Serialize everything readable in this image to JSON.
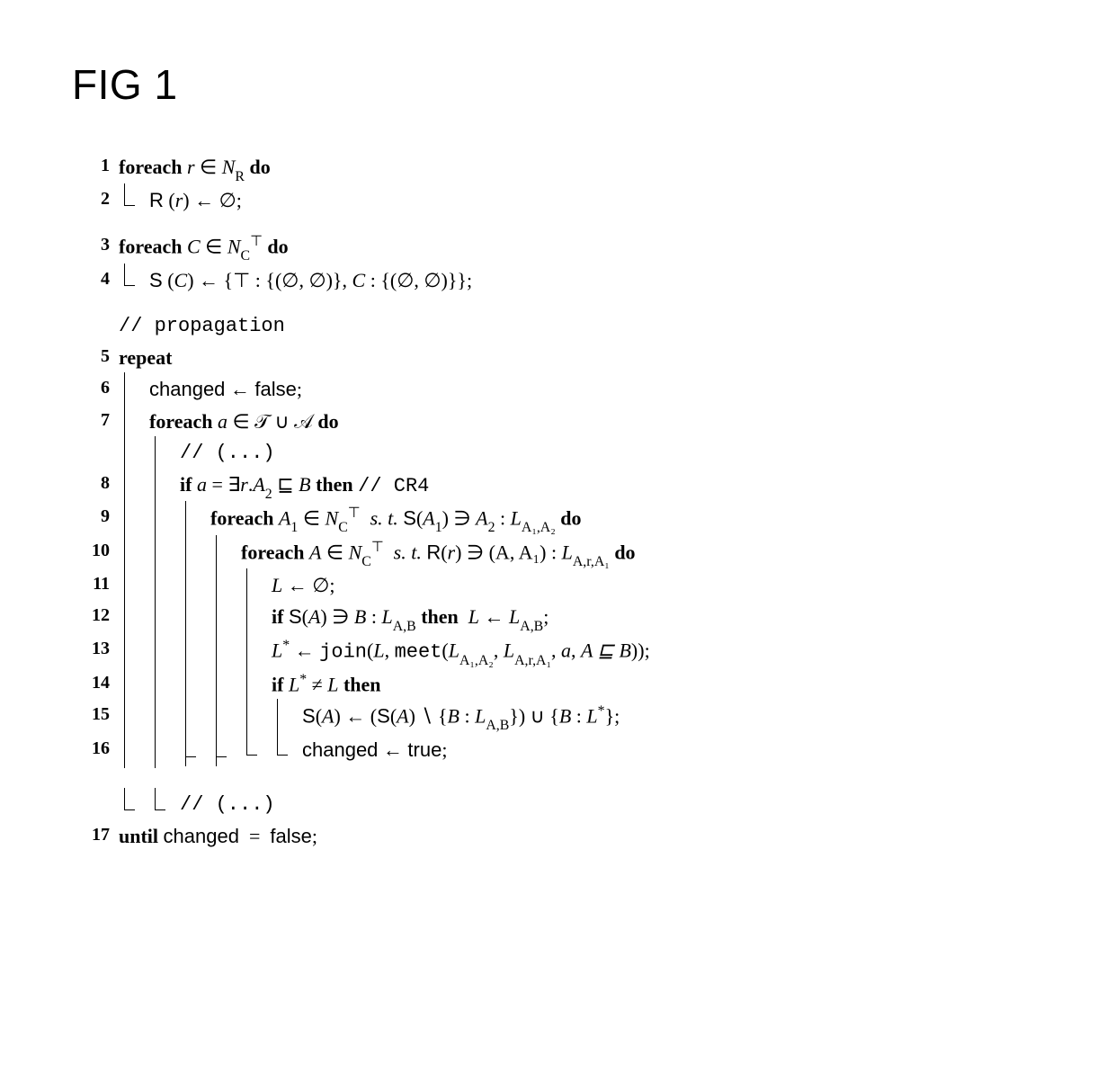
{
  "figure": {
    "title": "FIG 1",
    "title_fontsize": 46,
    "font_body_size": 22,
    "background_color": "#ffffff",
    "text_color": "#000000",
    "rule_color": "#000000",
    "font_mono": "Courier New",
    "font_serif": "Computer Modern / Times",
    "font_sans": "Helvetica/Arial"
  },
  "glyphs": {
    "in": "∈",
    "ni": "∋",
    "assign": "←",
    "empty": "∅",
    "top": "⊤",
    "sqsubset": "⊑",
    "exists": "∃",
    "neq": "≠",
    "setminus": "∖",
    "cup": "∪"
  },
  "kw": {
    "foreach": "foreach",
    "do": "do",
    "repeat": "repeat",
    "until": "until",
    "if": "if",
    "then": "then"
  },
  "tt": {
    "comment_prop": "// propagation",
    "ellipsis": "// (...)",
    "cr4": "// CR4",
    "join": "join",
    "meet": "meet"
  },
  "sf": {
    "R": "R",
    "S": "S",
    "changed": "changed",
    "false": "false",
    "true": "true"
  },
  "lines": {
    "l1": {
      "n": "1"
    },
    "l2": {
      "n": "2"
    },
    "l3": {
      "n": "3"
    },
    "l4": {
      "n": "4"
    },
    "l5": {
      "n": "5"
    },
    "l6": {
      "n": "6"
    },
    "l7": {
      "n": "7"
    },
    "l8": {
      "n": "8"
    },
    "l9": {
      "n": "9"
    },
    "l10": {
      "n": "10"
    },
    "l11": {
      "n": "11"
    },
    "l12": {
      "n": "12"
    },
    "l13": {
      "n": "13"
    },
    "l14": {
      "n": "14"
    },
    "l15": {
      "n": "15"
    },
    "l16": {
      "n": "16"
    },
    "l17": {
      "n": "17"
    }
  },
  "math": {
    "r": "r",
    "NR_base": "N",
    "NR_sub": "R",
    "C": "C",
    "NC_base": "N",
    "NC_sub": "C",
    "top_sup": "⊤",
    "pair_empty": "{(∅, ∅)}",
    "a": "a",
    "TA": "𝒯 ∪ 𝒜",
    "A": "A",
    "A1": "A",
    "A1_sub": "1",
    "A2": "A",
    "A2_sub": "2",
    "B": "B",
    "L": "L",
    "Lstar": "L",
    "star": "*",
    "st": "s. t.",
    "LsubA1A2": "A₁,A₂",
    "LsubArA1": "A,r,A₁",
    "LsubAB": "A,B",
    "AA1": "(A, A₁)",
    "asqB": "A ⊑ B"
  }
}
